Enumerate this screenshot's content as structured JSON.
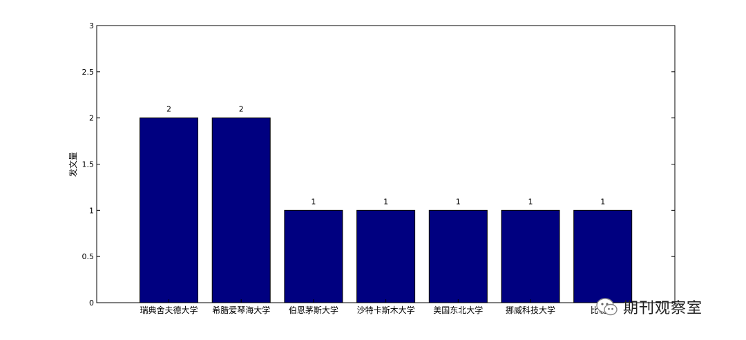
{
  "chart_data": {
    "type": "bar",
    "categories": [
      "瑞典舍夫德大学",
      "希腊爱琴海大学",
      "伯恩茅斯大学",
      "沙特卡斯木大学",
      "美国东北大学",
      "挪威科技大学",
      "比勒陀"
    ],
    "values": [
      2,
      2,
      1,
      1,
      1,
      1,
      1
    ],
    "data_labels": [
      "2",
      "2",
      "1",
      "1",
      "1",
      "1",
      "1"
    ],
    "title": "",
    "xlabel": "",
    "ylabel": "发文量",
    "ylim": [
      0,
      3
    ],
    "yticks": [
      0,
      0.5,
      1,
      1.5,
      2,
      2.5,
      3
    ],
    "ytick_labels": [
      "0",
      "0.5",
      "1",
      "1.5",
      "2",
      "2.5",
      "3"
    ],
    "bar_color": "#000080",
    "grid": false
  },
  "watermark": {
    "text": "期刊观察室",
    "icon": "wechat-icon"
  }
}
